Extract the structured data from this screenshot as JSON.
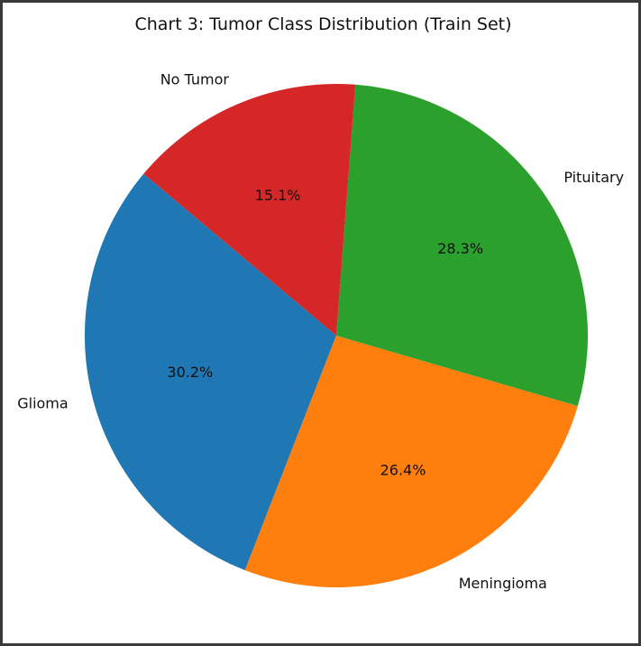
{
  "chart_data": {
    "type": "pie",
    "title": "Chart 3: Tumor Class Distribution (Train Set)",
    "start_angle_deg": 140,
    "direction": "counterclockwise",
    "slices": [
      {
        "label": "Glioma",
        "value": 30.2,
        "pct_label": "30.2%",
        "color": "#1f77b4"
      },
      {
        "label": "Meningioma",
        "value": 26.4,
        "pct_label": "26.4%",
        "color": "#ff7f0e"
      },
      {
        "label": "Pituitary",
        "value": 28.3,
        "pct_label": "28.3%",
        "color": "#2ca02c"
      },
      {
        "label": "No Tumor",
        "value": 15.1,
        "pct_label": "15.1%",
        "color": "#d62728"
      }
    ]
  }
}
